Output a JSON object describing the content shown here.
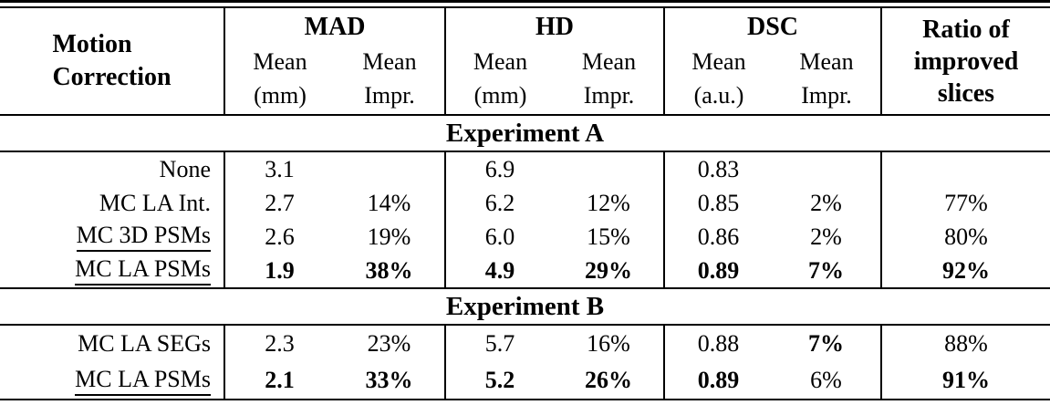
{
  "table": {
    "header": {
      "row_label_lines": [
        "Motion",
        "Correction"
      ],
      "groups": [
        {
          "name": "MAD",
          "sub1": "Mean",
          "sub2": "Mean",
          "unit1": "(mm)",
          "unit2": "Impr."
        },
        {
          "name": "HD",
          "sub1": "Mean",
          "sub2": "Mean",
          "unit1": "(mm)",
          "unit2": "Impr."
        },
        {
          "name": "DSC",
          "sub1": "Mean",
          "sub2": "Mean",
          "unit1": "(a.u.)",
          "unit2": "Impr."
        }
      ],
      "ratio_lines": [
        "Ratio of",
        "improved",
        "slices"
      ]
    },
    "sections": [
      {
        "band": "Experiment A",
        "rows": [
          {
            "label": "None",
            "underline": false,
            "cells": [
              {
                "text": "3.1",
                "bold": false
              },
              {
                "text": "",
                "bold": false
              },
              {
                "text": "6.9",
                "bold": false
              },
              {
                "text": "",
                "bold": false
              },
              {
                "text": "0.83",
                "bold": false
              },
              {
                "text": "",
                "bold": false
              },
              {
                "text": "",
                "bold": false
              }
            ]
          },
          {
            "label": "MC LA Int.",
            "underline": false,
            "cells": [
              {
                "text": "2.7",
                "bold": false
              },
              {
                "text": "14%",
                "bold": false
              },
              {
                "text": "6.2",
                "bold": false
              },
              {
                "text": "12%",
                "bold": false
              },
              {
                "text": "0.85",
                "bold": false
              },
              {
                "text": "2%",
                "bold": false
              },
              {
                "text": "77%",
                "bold": false
              }
            ]
          },
          {
            "label": "MC 3D PSMs",
            "underline": true,
            "cells": [
              {
                "text": "2.6",
                "bold": false
              },
              {
                "text": "19%",
                "bold": false
              },
              {
                "text": "6.0",
                "bold": false
              },
              {
                "text": "15%",
                "bold": false
              },
              {
                "text": "0.86",
                "bold": false
              },
              {
                "text": "2%",
                "bold": false
              },
              {
                "text": "80%",
                "bold": false
              }
            ]
          },
          {
            "label": "MC LA PSMs",
            "underline": true,
            "cells": [
              {
                "text": "1.9",
                "bold": true
              },
              {
                "text": "38%",
                "bold": true
              },
              {
                "text": "4.9",
                "bold": true
              },
              {
                "text": "29%",
                "bold": true
              },
              {
                "text": "0.89",
                "bold": true
              },
              {
                "text": "7%",
                "bold": true
              },
              {
                "text": "92%",
                "bold": true
              }
            ]
          }
        ]
      },
      {
        "band": "Experiment B",
        "rows": [
          {
            "label": "MC LA SEGs",
            "underline": false,
            "cells": [
              {
                "text": "2.3",
                "bold": false
              },
              {
                "text": "23%",
                "bold": false
              },
              {
                "text": "5.7",
                "bold": false
              },
              {
                "text": "16%",
                "bold": false
              },
              {
                "text": "0.88",
                "bold": false
              },
              {
                "text": "7%",
                "bold": true
              },
              {
                "text": "88%",
                "bold": false
              }
            ]
          },
          {
            "label": "MC LA PSMs",
            "underline": true,
            "cells": [
              {
                "text": "2.1",
                "bold": true
              },
              {
                "text": "33%",
                "bold": true
              },
              {
                "text": "5.2",
                "bold": true
              },
              {
                "text": "26%",
                "bold": true
              },
              {
                "text": "0.89",
                "bold": true
              },
              {
                "text": "6%",
                "bold": false
              },
              {
                "text": "91%",
                "bold": true
              }
            ]
          }
        ]
      }
    ]
  }
}
